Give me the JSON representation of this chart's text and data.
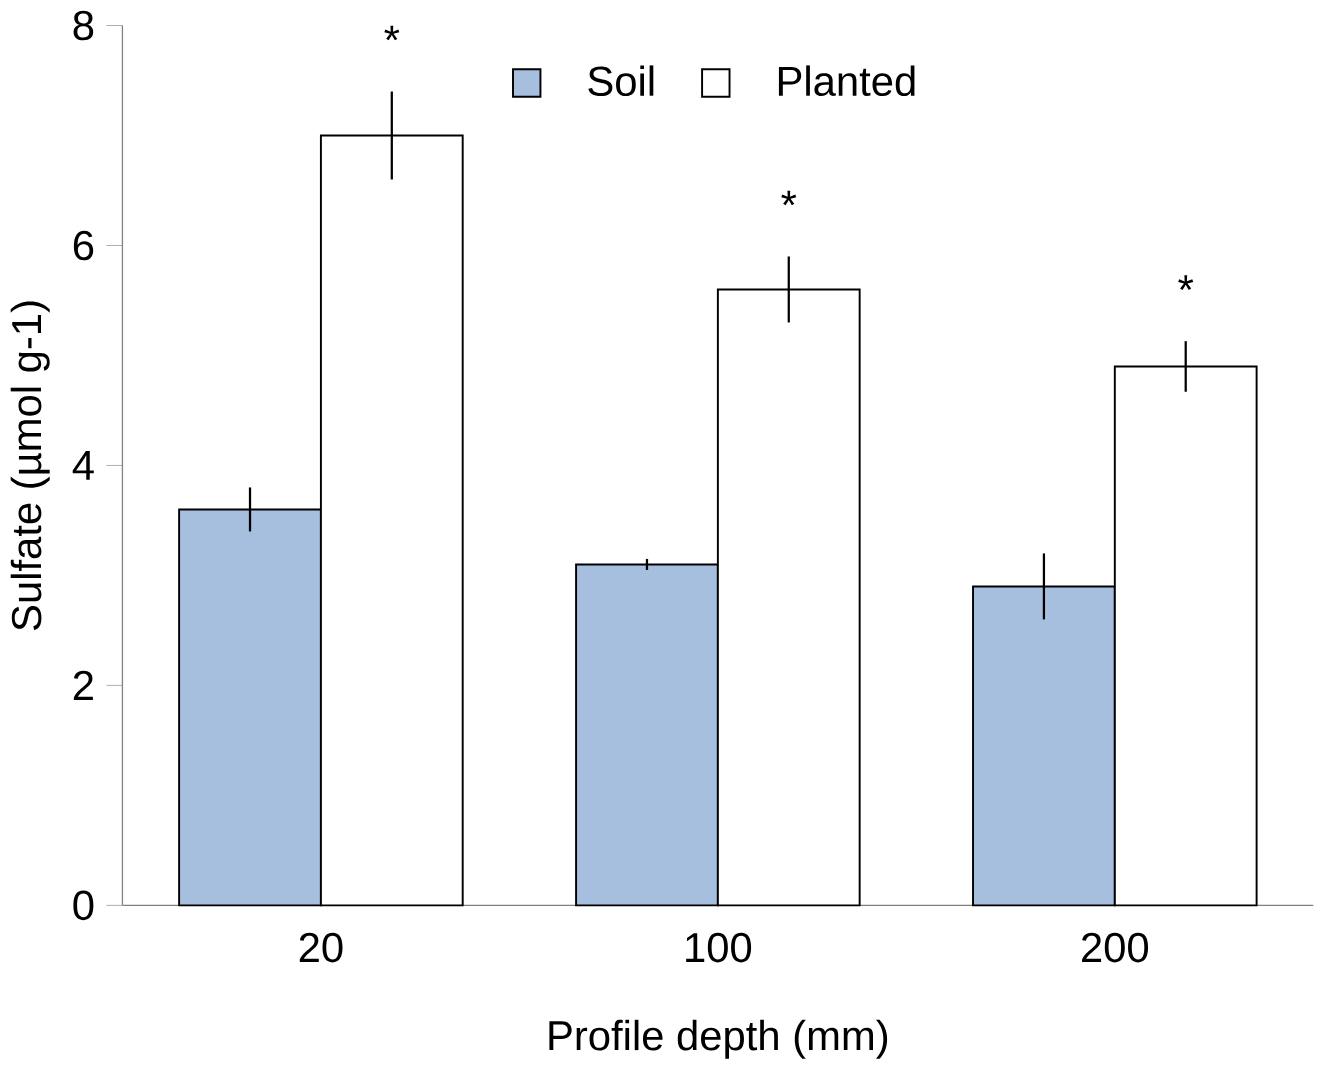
{
  "chart_data": {
    "type": "bar",
    "xlabel": "Profile depth (mm)",
    "ylabel": "Sulfate (µmol g-1)",
    "categories": [
      "20",
      "100",
      "200"
    ],
    "series": [
      {
        "name": "Soil",
        "color": "#a7bfde",
        "values": [
          3.6,
          3.1,
          2.9
        ],
        "errors": [
          0.2,
          0.05,
          0.3
        ]
      },
      {
        "name": "Planted",
        "color": "#ffffff",
        "values": [
          7.0,
          5.6,
          4.9
        ],
        "errors": [
          0.4,
          0.3,
          0.23
        ]
      }
    ],
    "ylim": [
      0,
      8
    ],
    "yticks": [
      0,
      2,
      4,
      6,
      8
    ],
    "legend": "top",
    "grid": false,
    "annotations": [
      "*",
      "*",
      "*"
    ]
  }
}
